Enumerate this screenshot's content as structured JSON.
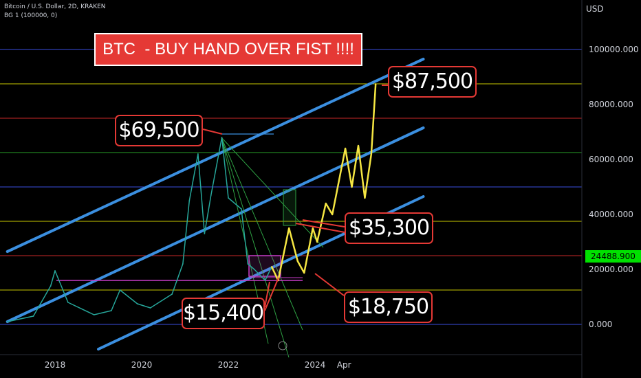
{
  "header": {
    "symbol_line": "Bitcoin / U.S. Dollar, 2D, KRAKEN",
    "indicator_line": "BG 1 (100000, 0)"
  },
  "banner": {
    "text": "BTC  - BUY HAND OVER FIST !!!!",
    "color": "#e53935"
  },
  "callouts": {
    "ath": "$69,500",
    "target": "$87,500",
    "mid": "$35,300",
    "low_2022": "$15,400",
    "low_projection": "$18,750"
  },
  "price_axis": {
    "currency": "USD",
    "last_price": "24488.900",
    "last_price_color": "#00e000"
  },
  "chart_data": {
    "type": "line",
    "title": "BTC  - BUY HAND OVER FIST !!!!",
    "ylim": [
      -9000,
      110000
    ],
    "y_ticks": [
      0,
      20000,
      40000,
      60000,
      80000,
      100000
    ],
    "y_tick_labels": [
      "0.000",
      "20000.000",
      "40000.000",
      "60000.000",
      "80000.000",
      "100000.000"
    ],
    "x_ticks": [
      2018,
      2020,
      2022,
      2024,
      2024.67
    ],
    "x_tick_labels": [
      "2018",
      "2020",
      "2022",
      "2024",
      "Apr"
    ],
    "grid": false,
    "horizontal_levels": [
      {
        "value": 100000,
        "color": "#3a4ee0"
      },
      {
        "value": 87500,
        "color": "#c8c800"
      },
      {
        "value": 75000,
        "color": "#c82828"
      },
      {
        "value": 62500,
        "color": "#28a028"
      },
      {
        "value": 50000,
        "color": "#3a4ee0"
      },
      {
        "value": 37500,
        "color": "#c8c800"
      },
      {
        "value": 25000,
        "color": "#c82828"
      },
      {
        "value": 12500,
        "color": "#c8c800"
      },
      {
        "value": 0,
        "color": "#3a4ee0"
      }
    ],
    "channel_lines": [
      {
        "points": [
          [
            2016.9,
            26500
          ],
          [
            2026.5,
            96500
          ]
        ],
        "color": "#3b8fe0"
      },
      {
        "points": [
          [
            2016.9,
            1000
          ],
          [
            2026.5,
            71500
          ]
        ],
        "color": "#3b8fe0"
      },
      {
        "points": [
          [
            2019.0,
            -9000
          ],
          [
            2026.5,
            46500
          ]
        ],
        "color": "#3b8fe0"
      }
    ],
    "series": [
      {
        "kind": "history",
        "color": "#26a69a",
        "x": [
          2016.9,
          2017.5,
          2017.9,
          2018.0,
          2018.3,
          2018.9,
          2019.3,
          2019.5,
          2019.9,
          2020.2,
          2020.7,
          2020.95,
          2021.1,
          2021.3,
          2021.45,
          2021.6,
          2021.85,
          2022.0,
          2022.3,
          2022.45,
          2022.6,
          2022.85,
          2023.0
        ],
        "values": [
          1000,
          3000,
          14000,
          19500,
          8000,
          3500,
          5000,
          12500,
          7500,
          6000,
          11000,
          22000,
          45000,
          62000,
          33000,
          47000,
          68000,
          46000,
          42000,
          22000,
          20000,
          16000,
          21000
        ]
      },
      {
        "kind": "projection",
        "color": "#f5e642",
        "x": [
          2023.0,
          2023.15,
          2023.4,
          2023.6,
          2023.75,
          2023.95,
          2024.05,
          2024.25,
          2024.4,
          2024.55,
          2024.7,
          2024.85,
          2025.0,
          2025.15,
          2025.3,
          2025.4
        ],
        "values": [
          21000,
          16000,
          35000,
          23000,
          18750,
          35000,
          30000,
          44000,
          40000,
          52000,
          64000,
          50000,
          65000,
          46000,
          62000,
          87500
        ]
      }
    ]
  }
}
